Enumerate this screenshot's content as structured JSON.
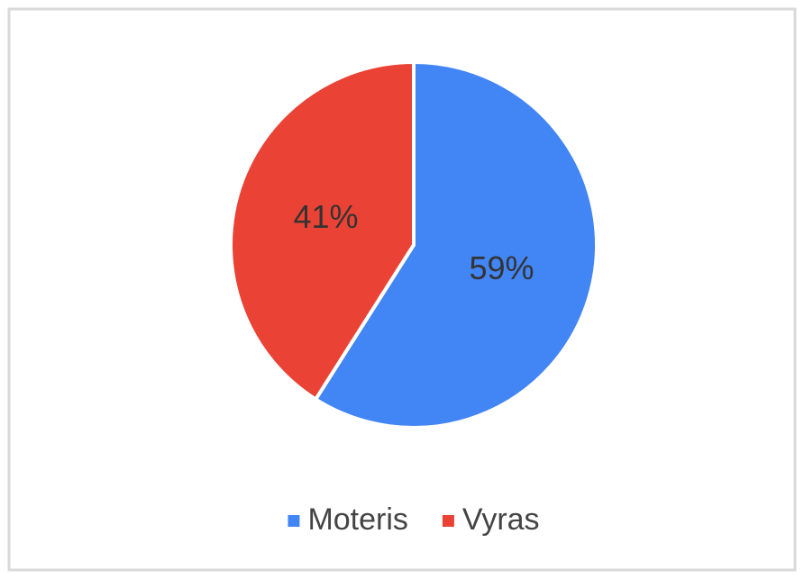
{
  "chart_data": {
    "type": "pie",
    "categories": [
      "Moteris",
      "Vyras"
    ],
    "values": [
      59,
      41
    ],
    "value_labels": [
      "59%",
      "41%"
    ],
    "colors": [
      "#4285f4",
      "#ea4335"
    ],
    "legend": "bottom"
  }
}
